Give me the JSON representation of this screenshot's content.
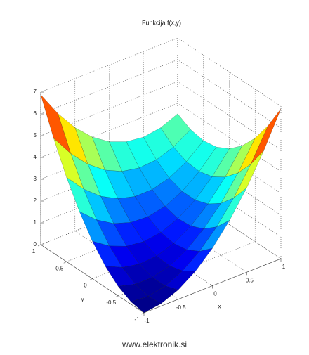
{
  "chart_data": {
    "type": "surface",
    "title": "Funkcija f(x,y)",
    "xlabel": "x",
    "ylabel": "y",
    "x": [
      -1,
      -0.75,
      -0.5,
      -0.25,
      0,
      0.25,
      0.5,
      0.75,
      1
    ],
    "y": [
      -1,
      -0.75,
      -0.5,
      -0.25,
      0,
      0.25,
      0.5,
      0.75,
      1
    ],
    "z": [
      [
        0,
        0.11,
        0.43,
        0.97,
        1.72,
        2.69,
        3.87,
        5.27,
        6.88
      ],
      [
        0.11,
        0.06,
        0.22,
        0.6,
        1.19,
        2.0,
        3.02,
        4.26,
        5.71
      ],
      [
        0.43,
        0.22,
        0.22,
        0.44,
        0.87,
        1.52,
        2.38,
        3.46,
        4.75
      ],
      [
        0.97,
        0.6,
        0.44,
        0.5,
        0.77,
        1.26,
        1.96,
        2.88,
        4.01
      ],
      [
        1.72,
        1.19,
        0.87,
        0.77,
        0.88,
        1.21,
        1.75,
        2.51,
        3.48
      ],
      [
        2.69,
        2.0,
        1.52,
        1.26,
        1.21,
        1.38,
        1.76,
        2.36,
        3.17
      ],
      [
        3.87,
        3.02,
        2.38,
        1.96,
        1.75,
        1.76,
        1.98,
        2.42,
        3.07
      ],
      [
        5.27,
        4.26,
        3.46,
        2.88,
        2.51,
        2.36,
        2.42,
        2.7,
        3.19
      ],
      [
        6.88,
        5.71,
        4.75,
        4.01,
        3.48,
        3.17,
        3.07,
        3.19,
        3.52
      ]
    ],
    "xlim": [
      -1,
      1
    ],
    "xticks": [
      -1,
      -0.5,
      0,
      0.5,
      1
    ],
    "ylim": [
      -1,
      1
    ],
    "yticks": [
      -1,
      -0.5,
      0,
      0.5,
      1
    ],
    "zlim": [
      0,
      7
    ],
    "zticks": [
      0,
      1,
      2,
      3,
      4,
      5,
      6,
      7
    ],
    "colormap": "jet",
    "grid": true,
    "footer": "www.elektronik.si"
  }
}
